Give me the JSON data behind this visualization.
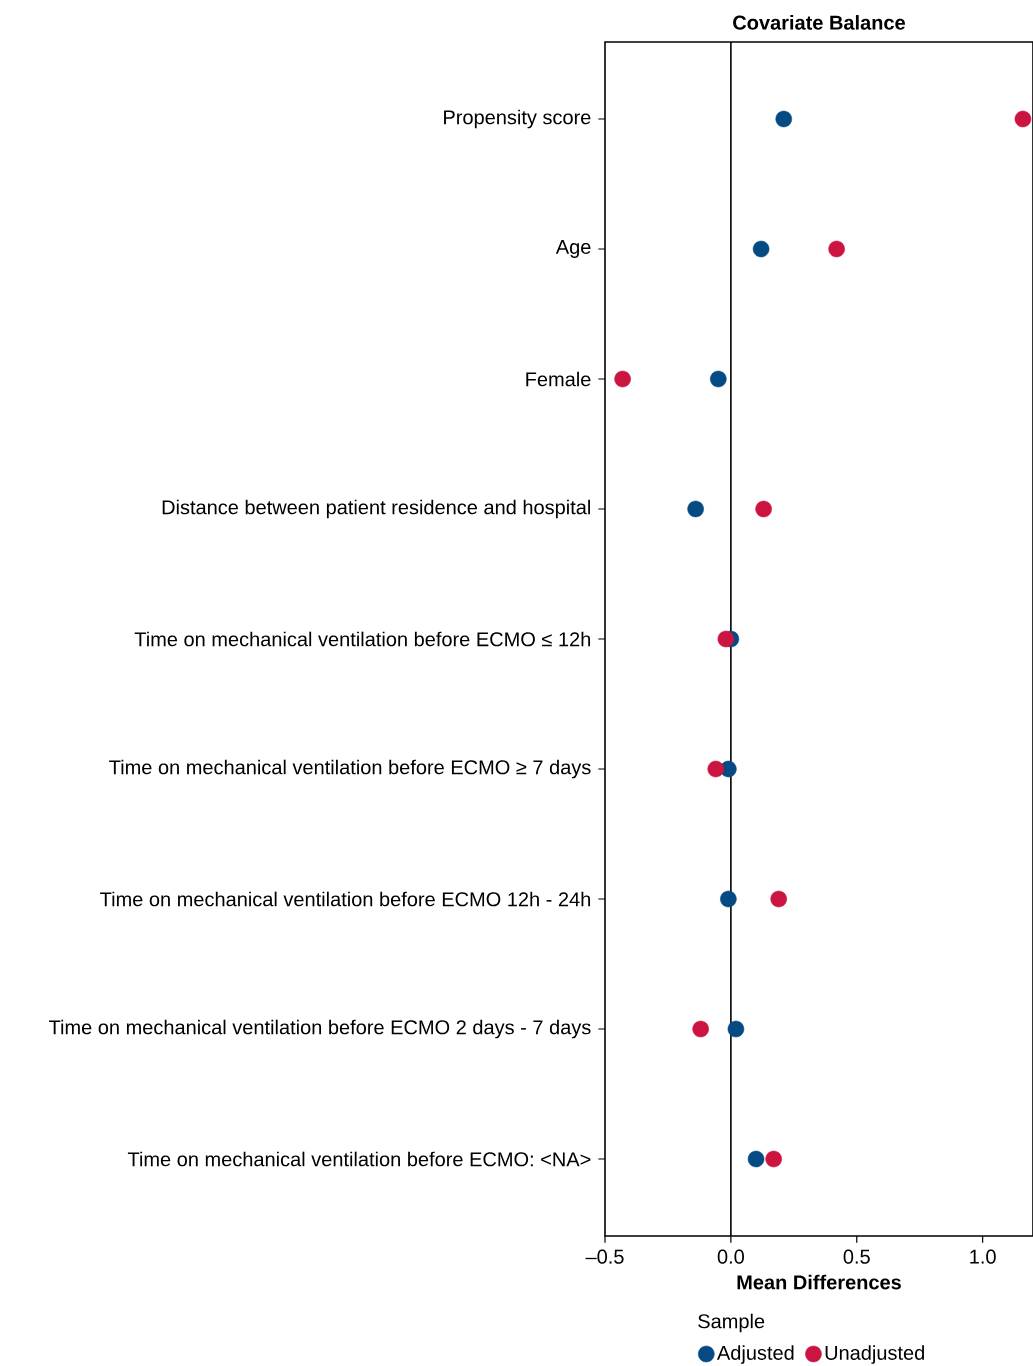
{
  "chart_data": {
    "type": "scatter",
    "title": "Covariate Balance",
    "xlabel": "Mean Differences",
    "legend_title": "Sample",
    "legend": "bottom",
    "marker": "circle",
    "orientation": "horizontal",
    "categories": [
      "Propensity score",
      "Age",
      "Female",
      "Distance between patient residence and hospital",
      "Time on mechanical ventilation before ECMO ≤ 12h",
      "Time on mechanical ventilation before ECMO ≥ 7 days",
      "Time on mechanical ventilation before ECMO 12h - 24h",
      "Time on mechanical ventilation before ECMO 2 days - 7 days",
      "Time on mechanical ventilation before ECMO: <NA>"
    ],
    "series": [
      {
        "name": "Adjusted",
        "color": "#064a84",
        "values": [
          0.21,
          0.12,
          -0.05,
          -0.14,
          0.0,
          -0.01,
          -0.01,
          0.02,
          0.1
        ]
      },
      {
        "name": "Unadjusted",
        "color": "#cc1440",
        "values": [
          1.16,
          0.42,
          -0.43,
          0.13,
          -0.02,
          -0.06,
          0.19,
          -0.12,
          0.17
        ]
      }
    ],
    "xlim": [
      -0.5,
      1.2
    ],
    "xticks": [
      {
        "value": -0.5,
        "label": "–0.5"
      },
      {
        "value": 0.0,
        "label": "0.0"
      },
      {
        "value": 0.5,
        "label": "0.5"
      },
      {
        "value": 1.0,
        "label": "1.0"
      }
    ],
    "ref_lines": [
      {
        "axis": "x",
        "value": 0
      }
    ]
  }
}
